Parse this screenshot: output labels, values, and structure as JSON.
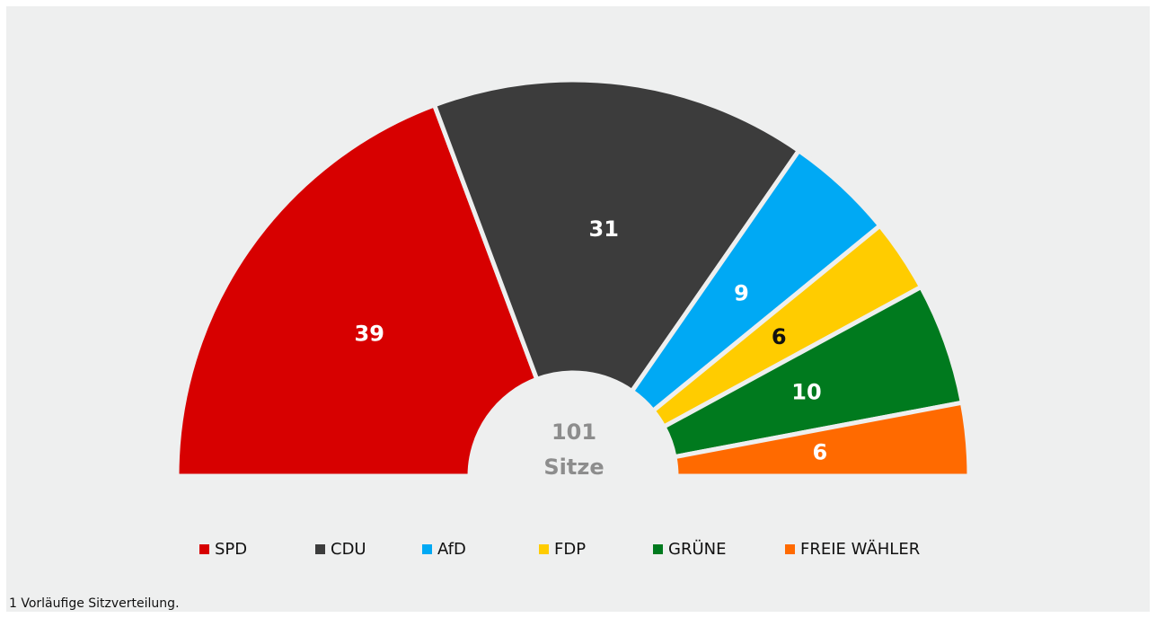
{
  "chart_data": {
    "type": "semicircle",
    "categories": [
      "SPD",
      "CDU",
      "AfD",
      "FDP",
      "GRÜNE",
      "FREIE WÄHLER"
    ],
    "values": [
      39,
      31,
      9,
      6,
      10,
      6
    ],
    "colors": [
      "#d70000",
      "#3c3c3c",
      "#00a9f4",
      "#ffcc00",
      "#007a1e",
      "#ff6a00"
    ],
    "label_colors": [
      "#ffffff",
      "#ffffff",
      "#ffffff",
      "#111111",
      "#ffffff",
      "#ffffff"
    ],
    "total": 101,
    "total_label": "Sitze",
    "footnote": "1 Vorläufige Sitzverteilung."
  }
}
